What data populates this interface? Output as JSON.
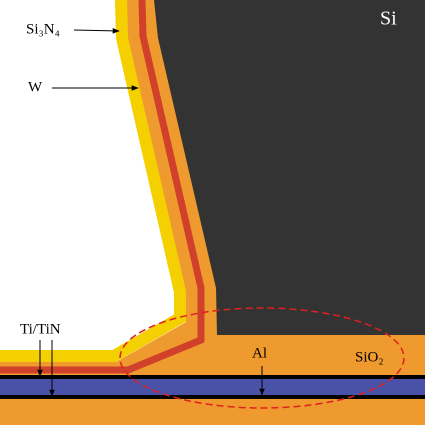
{
  "labels": {
    "si": "Si",
    "si3n4": "Si₃N₄",
    "w": "W",
    "titin": "Ti/TiN",
    "al": "Al",
    "sio2": "SiO₂"
  }
}
